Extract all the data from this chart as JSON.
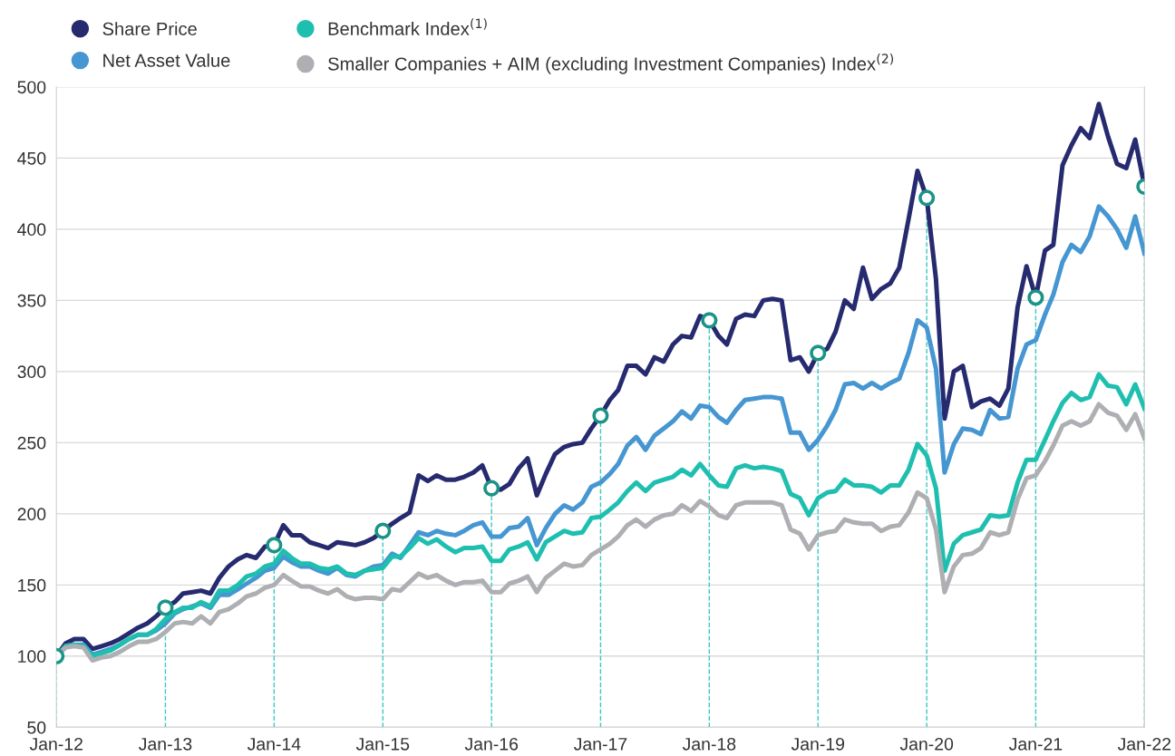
{
  "chart_data": {
    "type": "line",
    "x": [
      "2012-01",
      "2012-02",
      "2012-03",
      "2012-04",
      "2012-05",
      "2012-06",
      "2012-07",
      "2012-08",
      "2012-09",
      "2012-10",
      "2012-11",
      "2012-12",
      "2013-01",
      "2013-02",
      "2013-03",
      "2013-04",
      "2013-05",
      "2013-06",
      "2013-07",
      "2013-08",
      "2013-09",
      "2013-10",
      "2013-11",
      "2013-12",
      "2014-01",
      "2014-02",
      "2014-03",
      "2014-04",
      "2014-05",
      "2014-06",
      "2014-07",
      "2014-08",
      "2014-09",
      "2014-10",
      "2014-11",
      "2014-12",
      "2015-01",
      "2015-02",
      "2015-03",
      "2015-04",
      "2015-05",
      "2015-06",
      "2015-07",
      "2015-08",
      "2015-09",
      "2015-10",
      "2015-11",
      "2015-12",
      "2016-01",
      "2016-02",
      "2016-03",
      "2016-04",
      "2016-05",
      "2016-06",
      "2016-07",
      "2016-08",
      "2016-09",
      "2016-10",
      "2016-11",
      "2016-12",
      "2017-01",
      "2017-02",
      "2017-03",
      "2017-04",
      "2017-05",
      "2017-06",
      "2017-07",
      "2017-08",
      "2017-09",
      "2017-10",
      "2017-11",
      "2017-12",
      "2018-01",
      "2018-02",
      "2018-03",
      "2018-04",
      "2018-05",
      "2018-06",
      "2018-07",
      "2018-08",
      "2018-09",
      "2018-10",
      "2018-11",
      "2018-12",
      "2019-01",
      "2019-02",
      "2019-03",
      "2019-04",
      "2019-05",
      "2019-06",
      "2019-07",
      "2019-08",
      "2019-09",
      "2019-10",
      "2019-11",
      "2019-12",
      "2020-01",
      "2020-02",
      "2020-03",
      "2020-04",
      "2020-05",
      "2020-06",
      "2020-07",
      "2020-08",
      "2020-09",
      "2020-10",
      "2020-11",
      "2020-12",
      "2021-01",
      "2021-02",
      "2021-03",
      "2021-04",
      "2021-05",
      "2021-06",
      "2021-07",
      "2021-08",
      "2021-09",
      "2021-10",
      "2021-11",
      "2021-12",
      "2022-01"
    ],
    "series": [
      {
        "name": "Share Price",
        "color": "#262a6e",
        "values": [
          100,
          109,
          112,
          112,
          105,
          107,
          109,
          112,
          116,
          120,
          123,
          128,
          134,
          138,
          144,
          145,
          146,
          144,
          155,
          163,
          168,
          171,
          169,
          177,
          178,
          192,
          185,
          185,
          180,
          178,
          176,
          180,
          179,
          178,
          180,
          183,
          188,
          193,
          197,
          201,
          227,
          223,
          227,
          224,
          224,
          226,
          229,
          234,
          218,
          217,
          221,
          232,
          239,
          213,
          228,
          242,
          247,
          249,
          250,
          260,
          269,
          280,
          287,
          304,
          304,
          298,
          310,
          307,
          319,
          325,
          324,
          339,
          336,
          325,
          319,
          337,
          340,
          339,
          350,
          351,
          350,
          308,
          310,
          300,
          313,
          316,
          328,
          350,
          344,
          373,
          351,
          358,
          362,
          373,
          407,
          441,
          422,
          365,
          267,
          300,
          304,
          275,
          279,
          281,
          276,
          288,
          345,
          374,
          352,
          385,
          389,
          445,
          459,
          471,
          464,
          488,
          465,
          446,
          443,
          463,
          430
        ]
      },
      {
        "name": "Net Asset Value",
        "color": "#4696d2",
        "values": [
          100,
          107,
          108,
          108,
          101,
          103,
          105,
          108,
          112,
          115,
          115,
          118,
          123,
          130,
          133,
          135,
          137,
          134,
          143,
          143,
          147,
          151,
          155,
          160,
          162,
          170,
          166,
          163,
          163,
          160,
          158,
          162,
          157,
          156,
          160,
          163,
          164,
          172,
          169,
          178,
          187,
          185,
          188,
          186,
          185,
          188,
          192,
          194,
          184,
          184,
          190,
          191,
          197,
          178,
          190,
          200,
          206,
          203,
          208,
          219,
          222,
          228,
          235,
          248,
          254,
          245,
          255,
          260,
          265,
          272,
          267,
          276,
          275,
          268,
          264,
          273,
          280,
          281,
          282,
          282,
          281,
          257,
          257,
          245,
          252,
          262,
          273,
          291,
          292,
          288,
          292,
          288,
          292,
          295,
          313,
          336,
          331,
          302,
          229,
          249,
          260,
          259,
          256,
          273,
          267,
          268,
          302,
          319,
          322,
          340,
          354,
          377,
          389,
          384,
          395,
          416,
          409,
          400,
          387,
          409,
          383
        ]
      },
      {
        "name": "Benchmark Index$^{(1)}$",
        "color": "#1fbfb0",
        "values": [
          100,
          107,
          108,
          107,
          100,
          102,
          104,
          108,
          112,
          115,
          115,
          119,
          126,
          131,
          134,
          134,
          138,
          135,
          146,
          146,
          150,
          156,
          158,
          163,
          165,
          174,
          169,
          165,
          165,
          162,
          161,
          163,
          158,
          157,
          160,
          161,
          162,
          170,
          170,
          176,
          183,
          179,
          182,
          177,
          173,
          176,
          176,
          177,
          167,
          167,
          175,
          177,
          180,
          168,
          180,
          184,
          188,
          186,
          187,
          197,
          198,
          203,
          208,
          216,
          222,
          216,
          222,
          224,
          226,
          231,
          227,
          235,
          227,
          220,
          219,
          232,
          234,
          232,
          233,
          232,
          230,
          214,
          211,
          199,
          211,
          215,
          216,
          224,
          220,
          220,
          219,
          215,
          220,
          220,
          231,
          249,
          241,
          218,
          160,
          179,
          185,
          187,
          189,
          199,
          198,
          199,
          222,
          238,
          238,
          252,
          265,
          278,
          285,
          280,
          282,
          298,
          290,
          289,
          277,
          291,
          274
        ]
      },
      {
        "name": "Smaller Companies + AIM (excluding Investment Companies) Index$^{(2)}$",
        "color": "#aeafb2",
        "values": [
          100,
          106,
          107,
          106,
          97,
          99,
          100,
          103,
          107,
          110,
          110,
          112,
          117,
          123,
          124,
          123,
          128,
          123,
          131,
          133,
          137,
          142,
          144,
          148,
          150,
          157,
          153,
          149,
          149,
          146,
          144,
          147,
          142,
          140,
          141,
          141,
          140,
          147,
          146,
          152,
          158,
          155,
          157,
          153,
          150,
          152,
          152,
          153,
          145,
          145,
          151,
          153,
          156,
          145,
          155,
          160,
          165,
          163,
          164,
          171,
          175,
          179,
          184,
          192,
          196,
          191,
          196,
          199,
          200,
          206,
          202,
          209,
          205,
          199,
          197,
          206,
          208,
          208,
          208,
          208,
          206,
          189,
          186,
          175,
          185,
          187,
          188,
          196,
          194,
          193,
          193,
          188,
          191,
          192,
          201,
          215,
          211,
          189,
          145,
          163,
          171,
          172,
          176,
          187,
          185,
          187,
          210,
          225,
          227,
          237,
          248,
          262,
          265,
          262,
          265,
          277,
          271,
          269,
          259,
          270,
          253
        ]
      },
      {
        "type": "scatter",
        "marker": "circle",
        "color": "#1a9486",
        "x": [
          "2012-01",
          "2013-01",
          "2014-01",
          "2015-01",
          "2016-01",
          "2017-01",
          "2018-01",
          "2019-01",
          "2020-01",
          "2021-01",
          "2022-01"
        ],
        "values": [
          100,
          134,
          178,
          188,
          218,
          269,
          336,
          313,
          422,
          352,
          430
        ]
      }
    ],
    "ref_lines": [
      {
        "axis": "x",
        "value": "2012-01",
        "color": "#3cc8c0",
        "line_style": "dashed"
      },
      {
        "axis": "x",
        "value": "2013-01",
        "color": "#3cc8c0",
        "line_style": "dashed"
      },
      {
        "axis": "x",
        "value": "2014-01",
        "color": "#3cc8c0",
        "line_style": "dashed"
      },
      {
        "axis": "x",
        "value": "2015-01",
        "color": "#3cc8c0",
        "line_style": "dashed"
      },
      {
        "axis": "x",
        "value": "2016-01",
        "color": "#3cc8c0",
        "line_style": "dashed"
      },
      {
        "axis": "x",
        "value": "2017-01",
        "color": "#3cc8c0",
        "line_style": "dashed"
      },
      {
        "axis": "x",
        "value": "2018-01",
        "color": "#3cc8c0",
        "line_style": "dashed"
      },
      {
        "axis": "x",
        "value": "2019-01",
        "color": "#3cc8c0",
        "line_style": "dashed"
      },
      {
        "axis": "x",
        "value": "2020-01",
        "color": "#3cc8c0",
        "line_style": "dashed"
      },
      {
        "axis": "x",
        "value": "2021-01",
        "color": "#3cc8c0",
        "line_style": "dashed"
      },
      {
        "axis": "x",
        "value": "2022-01",
        "color": "#3cc8c0",
        "line_style": "dashed"
      }
    ],
    "xlim": [
      "2012-01",
      "2022-01"
    ],
    "xticks": [
      {
        "value": "2012-01",
        "label": "Jan-12"
      },
      {
        "value": "2013-01",
        "label": "Jan-13"
      },
      {
        "value": "2014-01",
        "label": "Jan-14"
      },
      {
        "value": "2015-01",
        "label": "Jan-15"
      },
      {
        "value": "2016-01",
        "label": "Jan-16"
      },
      {
        "value": "2017-01",
        "label": "Jan-17"
      },
      {
        "value": "2018-01",
        "label": "Jan-18"
      },
      {
        "value": "2019-01",
        "label": "Jan-19"
      },
      {
        "value": "2020-01",
        "label": "Jan-20"
      },
      {
        "value": "2021-01",
        "label": "Jan-21"
      },
      {
        "value": "2022-01",
        "label": "Jan-22"
      }
    ],
    "ylim": [
      50,
      500
    ],
    "yticks": [
      50,
      100,
      150,
      200,
      250,
      300,
      350,
      400,
      450,
      500
    ],
    "grid": "y",
    "legend": "top left",
    "line_style": "solid"
  }
}
